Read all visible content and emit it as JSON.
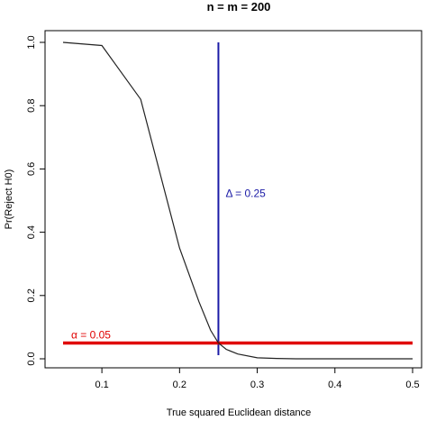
{
  "chart_data": {
    "type": "line",
    "title": "n = m = 200",
    "xlabel": "True squared Euclidean distance",
    "ylabel": "Pr(Reject H0)",
    "xlim": [
      0.05,
      0.5
    ],
    "ylim": [
      0.0,
      1.0
    ],
    "x_ticks": [
      0.1,
      0.2,
      0.3,
      0.4,
      0.5
    ],
    "y_ticks": [
      0.0,
      0.2,
      0.4,
      0.6,
      0.8,
      1.0
    ],
    "x_tick_labels": [
      "0.1",
      "0.2",
      "0.3",
      "0.4",
      "0.5"
    ],
    "y_tick_labels": [
      "0.0",
      "0.2",
      "0.4",
      "0.6",
      "0.8",
      "1.0"
    ],
    "grid": false,
    "series": [
      {
        "color": "#222222",
        "x": [
          0.05,
          0.1,
          0.15,
          0.2,
          0.225,
          0.24,
          0.25,
          0.26,
          0.275,
          0.3,
          0.325,
          0.35,
          0.375,
          0.4,
          0.425,
          0.45,
          0.475,
          0.5
        ],
        "y": [
          1.0,
          0.99,
          0.82,
          0.35,
          0.18,
          0.09,
          0.05,
          0.03,
          0.015,
          0.003,
          0.001,
          0.0,
          0.0,
          0.0,
          0.0,
          0.0,
          0.0,
          0.0
        ]
      }
    ],
    "reference_lines": [
      {
        "orientation": "vertical",
        "value": 0.25,
        "label": "Δ = 0.25",
        "color": "#1a1aa6"
      },
      {
        "orientation": "horizontal",
        "value": 0.05,
        "label": "α = 0.05",
        "color": "#e00000"
      }
    ]
  }
}
